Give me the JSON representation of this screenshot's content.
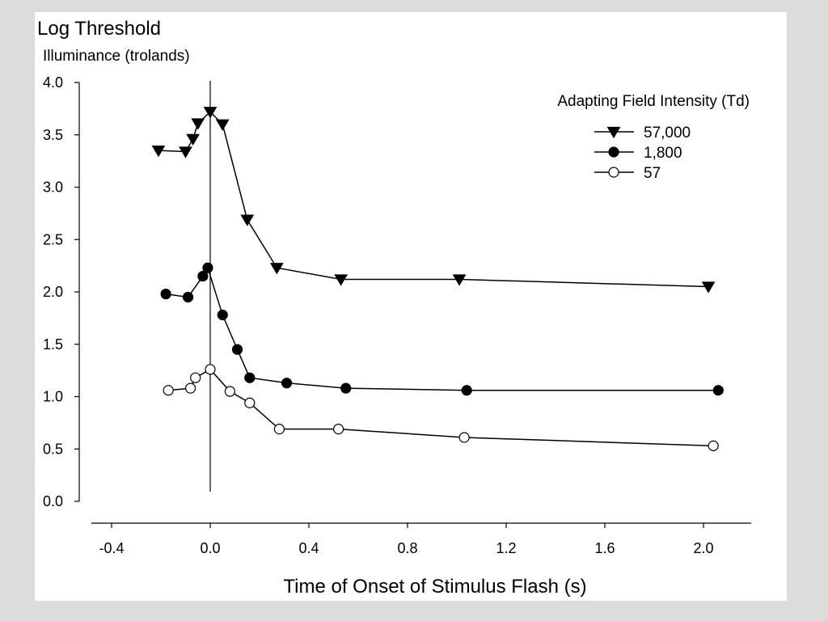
{
  "chart_data": {
    "type": "line",
    "title": "Log Threshold",
    "subtitle": "Illuminance (trolands)",
    "xlabel": "Time of Onset of Stimulus Flash (s)",
    "ylabel": "",
    "xlim": [
      -0.4,
      2.2
    ],
    "ylim": [
      0.0,
      4.0
    ],
    "x_ticks": [
      -0.4,
      0.0,
      0.4,
      0.8,
      1.2,
      1.6,
      2.0
    ],
    "x_tick_labels": [
      "-0.4",
      "0.0",
      "0.4",
      "0.8",
      "1.2",
      "1.6",
      "2.0"
    ],
    "y_ticks": [
      0.0,
      0.5,
      1.0,
      1.5,
      2.0,
      2.5,
      3.0,
      3.5,
      4.0
    ],
    "y_tick_labels": [
      "0.0",
      "0.5",
      "1.0",
      "1.5",
      "2.0",
      "2.5",
      "3.0",
      "3.5",
      "4.0"
    ],
    "reference_line_x": 0.0,
    "grid": false,
    "legend_title": "Adapting Field Intensity (Td)",
    "legend_position": "top-right",
    "series": [
      {
        "name": "57,000",
        "marker": "triangle-down",
        "fill": "#000000",
        "x": [
          -0.21,
          -0.1,
          -0.07,
          -0.05,
          0.0,
          0.05,
          0.15,
          0.27,
          0.53,
          1.01,
          2.02
        ],
        "y": [
          3.35,
          3.34,
          3.46,
          3.61,
          3.72,
          3.6,
          2.69,
          2.23,
          2.12,
          2.12,
          2.05
        ]
      },
      {
        "name": "1,800",
        "marker": "circle",
        "fill": "#000000",
        "x": [
          -0.18,
          -0.09,
          -0.03,
          -0.01,
          0.05,
          0.11,
          0.16,
          0.31,
          0.55,
          1.04,
          2.06
        ],
        "y": [
          1.98,
          1.95,
          2.15,
          2.23,
          1.78,
          1.45,
          1.18,
          1.13,
          1.08,
          1.06,
          1.06
        ]
      },
      {
        "name": "57",
        "marker": "circle",
        "fill": "#ffffff",
        "x": [
          -0.17,
          -0.08,
          -0.06,
          0.0,
          0.08,
          0.16,
          0.28,
          0.52,
          1.03,
          2.04
        ],
        "y": [
          1.06,
          1.08,
          1.18,
          1.26,
          1.05,
          0.94,
          0.69,
          0.69,
          0.61,
          0.53
        ]
      }
    ]
  }
}
